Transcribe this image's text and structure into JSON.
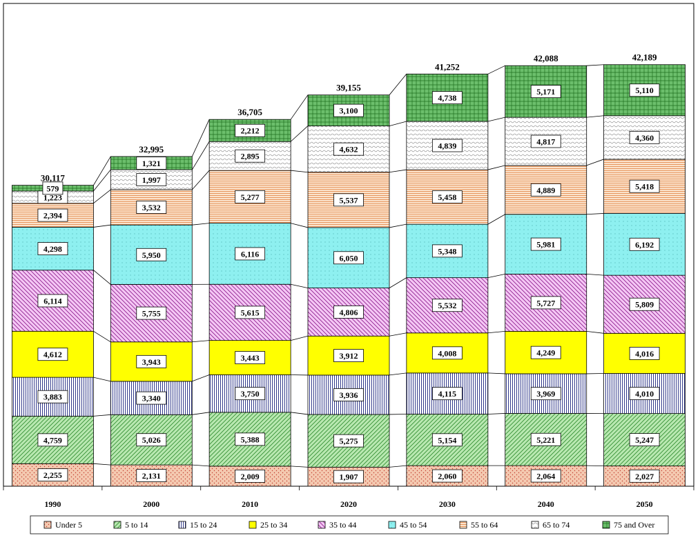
{
  "chart_data": {
    "type": "bar",
    "stacked": true,
    "categories": [
      "1990",
      "2000",
      "2010",
      "2020",
      "2030",
      "2040",
      "2050"
    ],
    "totals": [
      "30,117",
      "32,995",
      "36,705",
      "39,155",
      "41,252",
      "42,088",
      "42,189"
    ],
    "ylim": [
      0,
      45000
    ],
    "grid": false,
    "legend_position": "bottom",
    "series": [
      {
        "name": "Under 5",
        "color": "#f4c9b0",
        "pattern": "dots",
        "values": [
          2255,
          2131,
          2009,
          1907,
          2060,
          2064,
          2027
        ],
        "labels": [
          "2,255",
          "2,131",
          "2,009",
          "1,907",
          "2,060",
          "2,064",
          "2,027"
        ]
      },
      {
        "name": "5 to 14",
        "color": "#b8e8b0",
        "pattern": "diag-right",
        "values": [
          4759,
          5026,
          5388,
          5275,
          5154,
          5221,
          5247
        ],
        "labels": [
          "4,759",
          "5,026",
          "5,388",
          "5,275",
          "5,154",
          "5,221",
          "5,247"
        ]
      },
      {
        "name": "15 to 24",
        "color": "#ffffff",
        "pattern": "vlines",
        "values": [
          3883,
          3340,
          3750,
          3936,
          4115,
          3969,
          4010
        ],
        "labels": [
          "3,883",
          "3,340",
          "3,750",
          "3,936",
          "4,115",
          "3,969",
          "4,010"
        ]
      },
      {
        "name": "25 to 34",
        "color": "#ffff00",
        "pattern": "solid",
        "values": [
          4612,
          3943,
          3443,
          3912,
          4008,
          4249,
          4016
        ],
        "labels": [
          "4,612",
          "3,943",
          "3,443",
          "3,912",
          "4,008",
          "4,249",
          "4,016"
        ]
      },
      {
        "name": "35 to 44",
        "color": "#f4c6f4",
        "pattern": "diag-left",
        "values": [
          6114,
          5755,
          5615,
          4806,
          5532,
          5727,
          5809
        ],
        "labels": [
          "6,114",
          "5,755",
          "5,615",
          "4,806",
          "5,532",
          "5,727",
          "5,809"
        ]
      },
      {
        "name": "45 to 54",
        "color": "#8ef0f0",
        "pattern": "dots-fine",
        "values": [
          4298,
          5950,
          6116,
          6050,
          5348,
          5981,
          6192
        ],
        "labels": [
          "4,298",
          "5,950",
          "6,116",
          "6,050",
          "5,348",
          "5,981",
          "6,192"
        ]
      },
      {
        "name": "55 to 64",
        "color": "#fbe3cc",
        "pattern": "hlines",
        "values": [
          2394,
          3532,
          5277,
          5537,
          5458,
          4889,
          5418
        ],
        "labels": [
          "2,394",
          "3,532",
          "5,277",
          "5,537",
          "5,458",
          "4,889",
          "5,418"
        ]
      },
      {
        "name": "65 to 74",
        "color": "#ffffff",
        "pattern": "wave",
        "values": [
          1223,
          1997,
          2895,
          4632,
          4839,
          4817,
          4360
        ],
        "labels": [
          "1,223",
          "1,997",
          "2,895",
          "4,632",
          "4,839",
          "4,817",
          "4,360"
        ]
      },
      {
        "name": "75 and Over",
        "color": "#6cbf6c",
        "pattern": "grid",
        "values": [
          579,
          1321,
          2212,
          3100,
          4738,
          5171,
          5110
        ],
        "labels": [
          "579",
          "1,321",
          "2,212",
          "3,100",
          "4,738",
          "5,171",
          "5,110"
        ]
      }
    ]
  }
}
